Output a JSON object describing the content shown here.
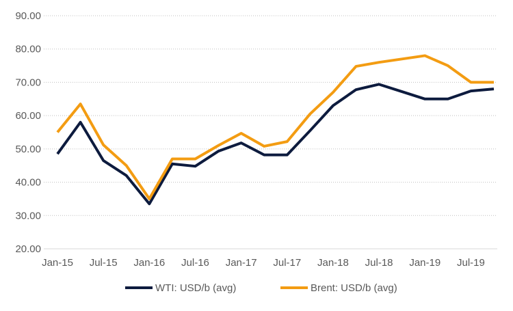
{
  "chart_data": {
    "type": "line",
    "title": "",
    "xlabel": "",
    "ylabel": "",
    "ylim": [
      20,
      90
    ],
    "y_ticks": [
      "20.00",
      "30.00",
      "40.00",
      "50.00",
      "60.00",
      "70.00",
      "80.00",
      "90.00"
    ],
    "y_tick_values": [
      20,
      30,
      40,
      50,
      60,
      70,
      80,
      90
    ],
    "x_ticks": [
      "Jan-15",
      "Jul-15",
      "Jan-16",
      "Jul-16",
      "Jan-17",
      "Jul-17",
      "Jan-18",
      "Jul-18",
      "Jan-19",
      "Jul-19"
    ],
    "x": [
      "Jan-15",
      "Apr-15",
      "Jul-15",
      "Oct-15",
      "Jan-16",
      "Apr-16",
      "Jul-16",
      "Oct-16",
      "Jan-17",
      "Apr-17",
      "Jul-17",
      "Oct-17",
      "Jan-18",
      "Apr-18",
      "Jul-18",
      "Oct-18",
      "Jan-19",
      "Apr-19",
      "Jul-19",
      "Oct-19"
    ],
    "x_index": [
      0,
      1,
      2,
      3,
      4,
      5,
      6,
      7,
      8,
      9,
      10,
      11,
      12,
      13,
      14,
      15,
      16,
      17,
      18,
      19
    ],
    "grid": true,
    "legend_position": "bottom",
    "series": [
      {
        "name": "WTI: USD/b (avg)",
        "color": "#0d1b3e",
        "values": [
          48.5,
          58.0,
          46.5,
          42.0,
          33.5,
          45.5,
          44.8,
          49.3,
          51.8,
          48.2,
          48.2,
          55.5,
          63.0,
          67.8,
          69.4,
          67.2,
          65.0,
          65.0,
          67.4,
          68.0
        ]
      },
      {
        "name": "Brent: USD/b (avg)",
        "color": "#f39c12",
        "values": [
          55.0,
          63.5,
          51.2,
          45.0,
          35.0,
          47.0,
          47.0,
          51.0,
          54.7,
          50.8,
          52.2,
          60.5,
          67.0,
          74.8,
          76.0,
          77.0,
          78.0,
          75.0,
          70.0,
          70.0
        ]
      }
    ]
  }
}
